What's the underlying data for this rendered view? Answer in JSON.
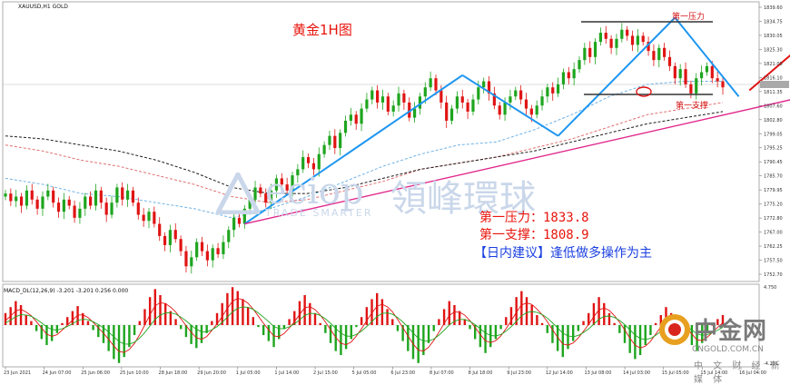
{
  "chart_header": {
    "symbol": "XAUUSD,H1  GOLD",
    "title": "黄金1H图",
    "indicator": "MACD_DL(12,26,9) -3.201 -3.201 0.256 0.000"
  },
  "levels": {
    "resistance_tag": "第一压力",
    "support_tag": "第一支撑",
    "resistance_text": "第一压力：1833.8",
    "support_text": "第一支撑：1808.9",
    "advice": "【日内建议】逢低做多操作为主",
    "resistance_value": 1833.8,
    "support_value": 1808.9
  },
  "watermark": {
    "en": "eciop",
    "cn": "領峰環球",
    "sub": "TRADE SMARTER"
  },
  "brand": {
    "cn": "中金网",
    "url": "CNGOLD.COM.CN",
    "tag": "中 文 财 经 新 媒 体"
  },
  "colors": {
    "bull_candle": "#1ea51e",
    "bear_candle": "#e01414",
    "trend_blue": "#1e96f0",
    "trend_magenta": "#e0288c",
    "forecast_red": "#e01414",
    "title_red": "#e8150d",
    "advice_blue": "#1a3fe0",
    "level_line": "#333333"
  },
  "chart_data": {
    "type": "candlestick",
    "price_axis": {
      "ylim": [
        1752,
        1840
      ],
      "ticks": [
        "1839.60",
        "1834.75",
        "1830.05",
        "1825.30",
        "1821.00",
        "1816.10",
        "1811.35",
        "1807.60",
        "1802.80",
        "1799.05",
        "1795.25",
        "1790.45",
        "1785.70",
        "1779.95",
        "1775.20",
        "1772.80",
        "1767.00",
        "1762.25",
        "1757.50",
        "1752.70"
      ]
    },
    "time_axis": {
      "ticks": [
        "23 Jun 2021",
        "24 Jun 07:00",
        "25 Jun 06:00",
        "25 Jun 10:00",
        "28 Jun 18:00",
        "29 Jun 20:00",
        "1 Jul 05:00",
        "1 Jul 14:00",
        "2 Jul 15:00",
        "5 Jul 05:00",
        "6 Jul 23:00",
        "8 Jul 07:00",
        "8 Jul 18:00",
        "9 Jul 23:00",
        "12 Jul 14:00",
        "13 Jul 08:00",
        "14 Jul 03:00",
        "15 Jul 05:00",
        "15 Jul 14:00",
        "16 Jul 04:00"
      ]
    },
    "macd_axis": {
      "ticks": [
        "4.750",
        "-4.281"
      ]
    },
    "series_close": [
      1778,
      1775.5,
      1777,
      1774,
      1779,
      1776,
      1773,
      1777,
      1779,
      1775,
      1772,
      1776,
      1774,
      1770,
      1773,
      1777,
      1774,
      1779,
      1775,
      1771,
      1775,
      1780,
      1776,
      1779,
      1775,
      1771,
      1769,
      1772,
      1768,
      1764,
      1761,
      1766,
      1763,
      1759,
      1754,
      1757,
      1762,
      1759,
      1756,
      1760,
      1758,
      1762,
      1766,
      1770,
      1768,
      1773,
      1776,
      1780,
      1778,
      1775,
      1779,
      1783,
      1781,
      1779,
      1784,
      1786,
      1790,
      1788,
      1786,
      1791,
      1794,
      1797,
      1793,
      1798,
      1802,
      1804,
      1801,
      1806,
      1809,
      1812,
      1808,
      1810,
      1805,
      1807,
      1811,
      1808,
      1803,
      1806,
      1810,
      1813,
      1816,
      1812,
      1808,
      1802,
      1806,
      1810,
      1808,
      1805,
      1809,
      1813,
      1815,
      1811,
      1807,
      1804,
      1808,
      1810,
      1812,
      1809,
      1806,
      1804,
      1807,
      1810,
      1813,
      1811,
      1814,
      1818,
      1816,
      1819,
      1822,
      1826,
      1823,
      1828,
      1831,
      1829,
      1826,
      1829,
      1832,
      1830,
      1827,
      1830,
      1828,
      1825,
      1822,
      1826,
      1823,
      1820,
      1816,
      1819,
      1814,
      1811,
      1816,
      1818,
      1820,
      1816,
      1815,
      1813
    ],
    "moving_averages": [
      {
        "color": "#6fb2e6",
        "style": "dashed",
        "values": [
          1783,
          1781,
          1778,
          1777,
          1775,
          1773,
          1770,
          1773,
          1777,
          1782,
          1787,
          1791,
          1794,
          1795,
          1799,
          1804,
          1810,
          1814,
          1815,
          1815
        ]
      },
      {
        "color": "#e07070",
        "style": "dashed",
        "values": [
          1794,
          1792,
          1789,
          1787,
          1784,
          1781,
          1777,
          1775,
          1776,
          1779,
          1782,
          1786,
          1788,
          1790,
          1793,
          1796,
          1800,
          1804,
          1806,
          1808
        ]
      },
      {
        "color": "#1a1a1a",
        "style": "dashed",
        "values": [
          1797,
          1796,
          1794,
          1792,
          1789,
          1785,
          1780,
          1778,
          1778,
          1780,
          1783,
          1786,
          1788,
          1790,
          1792,
          1795,
          1798,
          1801,
          1803,
          1805
        ]
      }
    ],
    "annotations": {
      "uptrend_legs": [
        {
          "from": {
            "bar": 45,
            "price": 1768
          },
          "to": {
            "bar": 86,
            "price": 1817
          }
        },
        {
          "from": {
            "bar": 86,
            "price": 1817
          },
          "to": {
            "bar": 104,
            "price": 1797
          }
        },
        {
          "from": {
            "bar": 104,
            "price": 1797
          },
          "to": {
            "bar": 126,
            "price": 1836
          }
        },
        {
          "from": {
            "bar": 126,
            "price": 1836
          },
          "to": {
            "bar": 138,
            "price": 1810
          }
        }
      ],
      "support_trendline": {
        "from": {
          "bar": 45,
          "price": 1768
        },
        "to": {
          "bar": 153,
          "price": 1811
        }
      },
      "forecast_arrow": {
        "from": {
          "bar": 140,
          "price": 1812
        },
        "to": {
          "bar": 152,
          "price": 1830
        }
      }
    },
    "macd": {
      "histogram": [
        1.2,
        1.8,
        2.4,
        2.0,
        1.0,
        0.4,
        -0.6,
        -1.4,
        -2.0,
        -1.6,
        -0.8,
        0.2,
        0.8,
        1.4,
        1.9,
        1.2,
        0.4,
        -0.5,
        -1.2,
        -1.8,
        -2.6,
        -3.4,
        -3.8,
        -3.2,
        -2.2,
        -1.0,
        0.4,
        1.6,
        2.8,
        3.6,
        3.0,
        2.2,
        1.4,
        0.6,
        -0.4,
        -1.2,
        -1.9,
        -2.3,
        -1.8,
        -0.8,
        0.4,
        1.2,
        2.2,
        3.2,
        3.8,
        3.4,
        2.6,
        1.8,
        0.8,
        -0.2,
        -1.0,
        -1.6,
        -2.2,
        -1.4,
        -0.4,
        0.6,
        1.4,
        2.4,
        3.0,
        2.2,
        1.2,
        0.2,
        -0.8,
        -1.8,
        -2.6,
        -3.0,
        -2.4,
        -1.4,
        -0.2,
        0.8,
        1.8,
        2.6,
        3.2,
        2.6,
        1.6,
        0.6,
        -0.6,
        -1.6,
        -2.6,
        -3.4,
        -3.8,
        -3.0,
        -1.8,
        -0.6,
        0.6,
        1.6,
        2.4,
        2.0,
        1.4,
        0.6,
        -0.4,
        -1.4,
        -2.2,
        -2.8,
        -2.2,
        -1.4,
        -0.4,
        0.8,
        1.8,
        2.8,
        3.4,
        2.8,
        2.0,
        1.0,
        0.2,
        -0.8,
        -1.8,
        -2.6,
        -3.2,
        -2.4,
        -1.6,
        -0.6,
        0.4,
        1.2,
        2.2,
        2.8,
        2.2,
        1.2,
        0.2,
        -0.8,
        -1.8,
        -2.8,
        -3.4,
        -3.0,
        -2.0,
        -1.0,
        0.2,
        1.0,
        1.8,
        1.2,
        0.6,
        -0.4,
        -1.2,
        -2.0,
        -2.6,
        -1.8,
        -0.8,
        0.0,
        0.6,
        1.0
      ],
      "signal_colors": [
        "#e01414",
        "#1ea51e"
      ]
    }
  }
}
